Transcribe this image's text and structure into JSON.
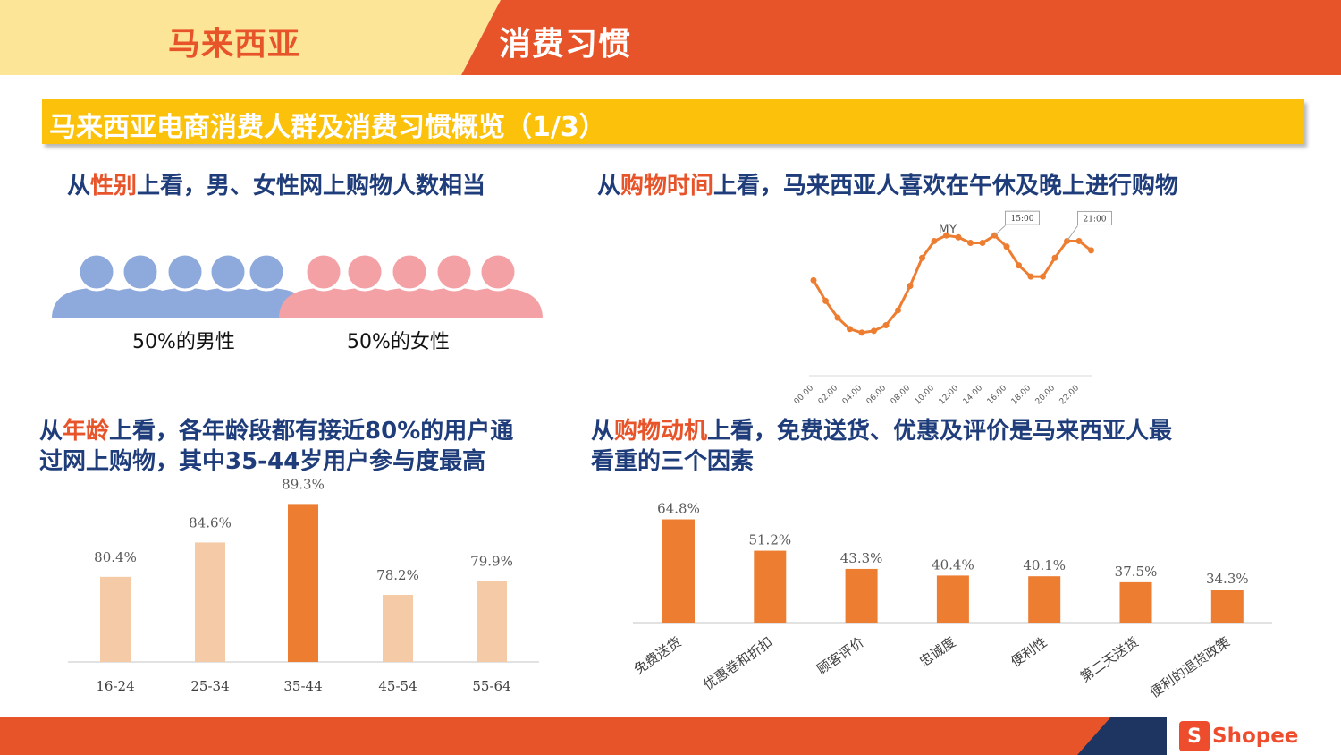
{
  "header": {
    "left_title": "马来西亚",
    "right_title": "消费习惯"
  },
  "banner": {
    "title": "马来西亚电商消费人群及消费习惯概览（1/3）"
  },
  "sections": {
    "gender": {
      "pre": "从",
      "hl": "性别",
      "post": "上看，男、女性网上购物人数相当"
    },
    "time": {
      "pre": "从",
      "hl": "购物时间",
      "post": "上看，马来西亚人喜欢在午休及晚上进行购物"
    },
    "age": {
      "pre": "从",
      "hl": "年龄",
      "post": "上看，各年龄段都有接近80%的用户通",
      "line2": "过网上购物，其中35-44岁用户参与度最高"
    },
    "motive": {
      "pre": "从",
      "hl": "购物动机",
      "post": "上看，免费送货、优惠及评价是马来西亚人最",
      "line2": "看重的三个因素"
    }
  },
  "gender": {
    "male_label": "50%的男性",
    "female_label": "50%的女性",
    "male_color": "#8ea9db",
    "female_color": "#f4a1a6"
  },
  "footer": {
    "logo_text": "Shopee",
    "logo_glyph": "S"
  },
  "chart_data": [
    {
      "type": "line",
      "title": "MY",
      "x": [
        "00:00",
        "01:00",
        "02:00",
        "03:00",
        "04:00",
        "05:00",
        "06:00",
        "07:00",
        "08:00",
        "09:00",
        "10:00",
        "11:00",
        "12:00",
        "13:00",
        "14:00",
        "15:00",
        "16:00",
        "17:00",
        "18:00",
        "19:00",
        "20:00",
        "21:00",
        "22:00",
        "23:00"
      ],
      "tick_labels": [
        "00:00",
        "02:00",
        "04:00",
        "06:00",
        "08:00",
        "10:00",
        "12:00",
        "14:00",
        "16:00",
        "18:00",
        "20:00",
        "22:00"
      ],
      "values": [
        51,
        40,
        31,
        25,
        23,
        24,
        27,
        35,
        48,
        63,
        72,
        75,
        74,
        71,
        71,
        75,
        69,
        59,
        53,
        53,
        63,
        72,
        72,
        67
      ],
      "ylim": [
        0,
        110
      ],
      "annotations": [
        {
          "x": "15:00",
          "label": "15:00"
        },
        {
          "x": "21:00",
          "label": "21:00"
        }
      ],
      "color": "#ed7d31",
      "grid": false
    },
    {
      "type": "bar",
      "categories": [
        "16-24",
        "25-34",
        "35-44",
        "45-54",
        "55-64"
      ],
      "values": [
        80.4,
        84.6,
        89.3,
        78.2,
        79.9
      ],
      "labels": [
        "80.4%",
        "84.6%",
        "89.3%",
        "78.2%",
        "79.9%"
      ],
      "ylim": [
        70,
        90
      ],
      "highlight_index": 2,
      "color": "#f5cba7",
      "highlight_color": "#ed7d31",
      "grid": false
    },
    {
      "type": "bar",
      "categories": [
        "免费送货",
        "优惠卷和折扣",
        "顾客评价",
        "忠诚度",
        "便利性",
        "第二天送货",
        "便利的退货政策"
      ],
      "values": [
        64.8,
        51.2,
        43.3,
        40.4,
        40.1,
        37.5,
        34.3
      ],
      "labels": [
        "64.8%",
        "51.2%",
        "43.3%",
        "40.4%",
        "40.1%",
        "37.5%",
        "34.3%"
      ],
      "ylim": [
        20,
        65
      ],
      "color": "#ed7d31",
      "grid": false
    }
  ]
}
